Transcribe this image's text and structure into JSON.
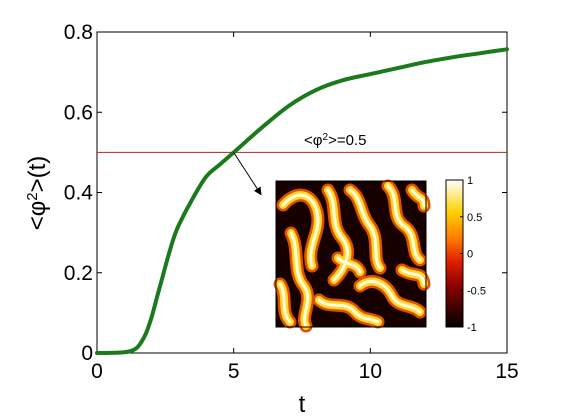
{
  "chart_data": {
    "type": "line",
    "title": "",
    "xlabel": "t",
    "ylabel": "<φ²>(t)",
    "xlim": [
      0,
      15
    ],
    "ylim": [
      0,
      0.8
    ],
    "xticks": [
      "0",
      "5",
      "10",
      "15"
    ],
    "yticks": [
      "0",
      "0.2",
      "0.4",
      "0.6",
      "0.8"
    ],
    "grid": false,
    "series": [
      {
        "color": "#1b7a1b",
        "x": [
          0,
          1.0,
          1.4,
          1.6,
          1.8,
          2.0,
          2.2,
          2.4,
          2.6,
          2.8,
          3.0,
          3.5,
          4.0,
          4.5,
          5.0,
          5.5,
          6.0,
          7.0,
          8.0,
          9.0,
          10.0,
          11.0,
          12.0,
          13.0,
          14.0,
          15.0
        ],
        "y": [
          0,
          0.002,
          0.01,
          0.025,
          0.05,
          0.09,
          0.14,
          0.19,
          0.24,
          0.285,
          0.32,
          0.385,
          0.44,
          0.47,
          0.5,
          0.53,
          0.56,
          0.615,
          0.655,
          0.68,
          0.695,
          0.71,
          0.725,
          0.737,
          0.747,
          0.757
        ]
      }
    ],
    "reference_line": {
      "y": 0.5,
      "color": "#b22222"
    },
    "annotation": {
      "prefix": "<φ",
      "sup": "2",
      "suffix": ">=0.5",
      "arrow_from": [
        5,
        0.5
      ],
      "arrow_to": [
        6.0,
        0.395
      ]
    },
    "inset": {
      "colorbar_ticks": [
        "1",
        "0.5",
        "0",
        "-0.5",
        "-1"
      ],
      "colorbar_range": [
        -1,
        1
      ]
    }
  }
}
